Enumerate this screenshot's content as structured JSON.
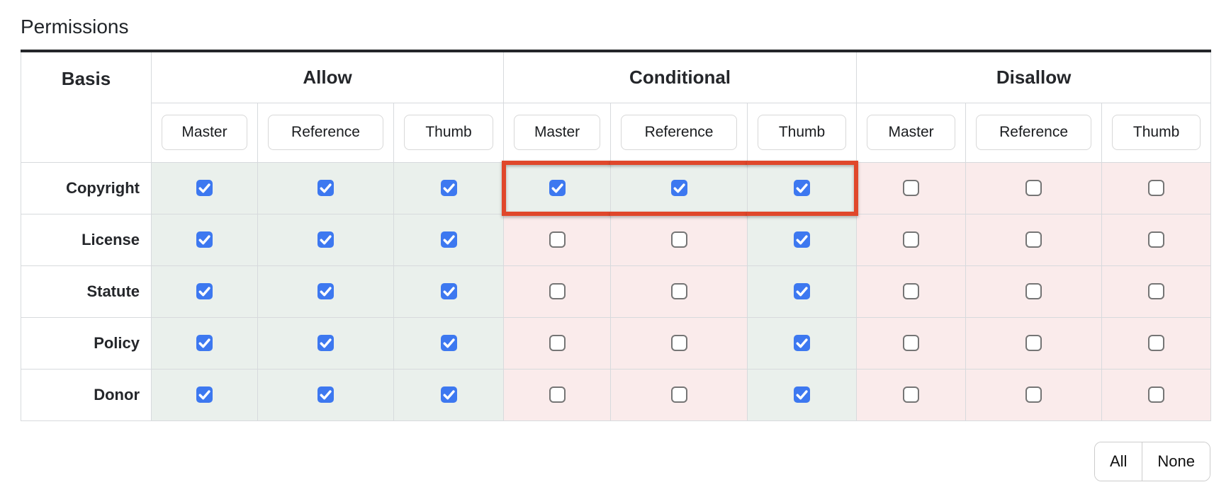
{
  "title": "Permissions",
  "colors": {
    "checked_cell_bg": "#eaf0ec",
    "unchecked_cell_bg": "#faebeb",
    "checkbox_checked": "#3d78f0",
    "highlight_border": "#e0472b",
    "table_top_border": "#24262a"
  },
  "table": {
    "basis_header": "Basis",
    "groups": [
      {
        "key": "allow",
        "label": "Allow"
      },
      {
        "key": "conditional",
        "label": "Conditional"
      },
      {
        "key": "disallow",
        "label": "Disallow"
      }
    ],
    "subcolumns": [
      "Master",
      "Reference",
      "Thumb"
    ],
    "rows": [
      {
        "label": "Copyright",
        "allow": [
          true,
          true,
          true
        ],
        "conditional": [
          true,
          true,
          true
        ],
        "disallow": [
          false,
          false,
          false
        ]
      },
      {
        "label": "License",
        "allow": [
          true,
          true,
          true
        ],
        "conditional": [
          false,
          false,
          true
        ],
        "disallow": [
          false,
          false,
          false
        ]
      },
      {
        "label": "Statute",
        "allow": [
          true,
          true,
          true
        ],
        "conditional": [
          false,
          false,
          true
        ],
        "disallow": [
          false,
          false,
          false
        ]
      },
      {
        "label": "Policy",
        "allow": [
          true,
          true,
          true
        ],
        "conditional": [
          false,
          false,
          true
        ],
        "disallow": [
          false,
          false,
          false
        ]
      },
      {
        "label": "Donor",
        "allow": [
          true,
          true,
          true
        ],
        "conditional": [
          false,
          false,
          true
        ],
        "disallow": [
          false,
          false,
          false
        ]
      }
    ],
    "highlight": {
      "row": "Copyright",
      "group": "conditional"
    }
  },
  "footer": {
    "all_label": "All",
    "none_label": "None"
  }
}
